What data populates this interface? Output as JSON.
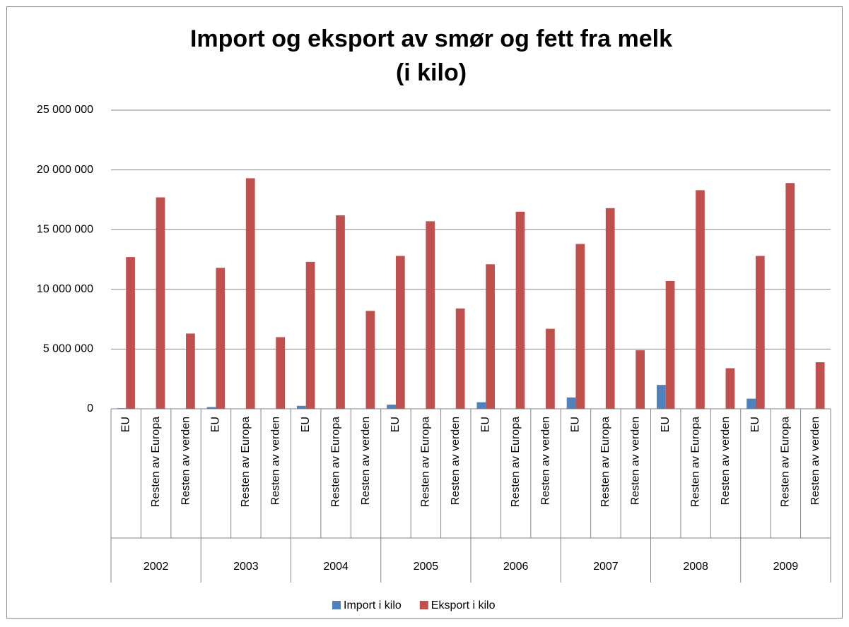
{
  "chart_data": {
    "type": "bar",
    "title": [
      "Import og eksport av smør og fett fra melk",
      "(i kilo)"
    ],
    "categories": [
      "EU",
      "Resten av Europa",
      "Resten av verden",
      "EU",
      "Resten av Europa",
      "Resten av verden",
      "EU",
      "Resten av Europa",
      "Resten av verden",
      "EU",
      "Resten av Europa",
      "Resten av verden",
      "EU",
      "Resten av Europa",
      "Resten av verden",
      "EU",
      "Resten av Europa",
      "Resten av verden",
      "EU",
      "Resten av Europa",
      "Resten av verden",
      "EU",
      "Resten av Europa",
      "Resten av verden"
    ],
    "category_groups": [
      "2002",
      "2003",
      "2004",
      "2005",
      "2006",
      "2007",
      "2008",
      "2009"
    ],
    "series": [
      {
        "name": "Import i kilo",
        "color": "#4f81bd",
        "values": [
          50000,
          10000,
          10000,
          150000,
          10000,
          10000,
          250000,
          10000,
          10000,
          350000,
          10000,
          10000,
          550000,
          20000,
          10000,
          950000,
          20000,
          10000,
          2000000,
          30000,
          10000,
          850000,
          20000,
          10000
        ]
      },
      {
        "name": "Eksport i kilo",
        "color": "#c0504d",
        "values": [
          12700000,
          17700000,
          6300000,
          11800000,
          19300000,
          6000000,
          12300000,
          16200000,
          8200000,
          12800000,
          15700000,
          8400000,
          12100000,
          16500000,
          6700000,
          13800000,
          16800000,
          4900000,
          10700000,
          18300000,
          3400000,
          12800000,
          18900000,
          3900000
        ]
      }
    ],
    "ylim": [
      0,
      25000000
    ],
    "yticks": [
      0,
      {
        "value": 5000000,
        "label": "5 000 000"
      },
      {
        "value": 10000000,
        "label": "10 000 000"
      },
      {
        "value": 15000000,
        "label": "15 000 000"
      },
      {
        "value": 20000000,
        "label": "20 000 000"
      },
      {
        "value": 25000000,
        "label": "25 000 000"
      }
    ],
    "grid": true,
    "legend": "bottom"
  }
}
